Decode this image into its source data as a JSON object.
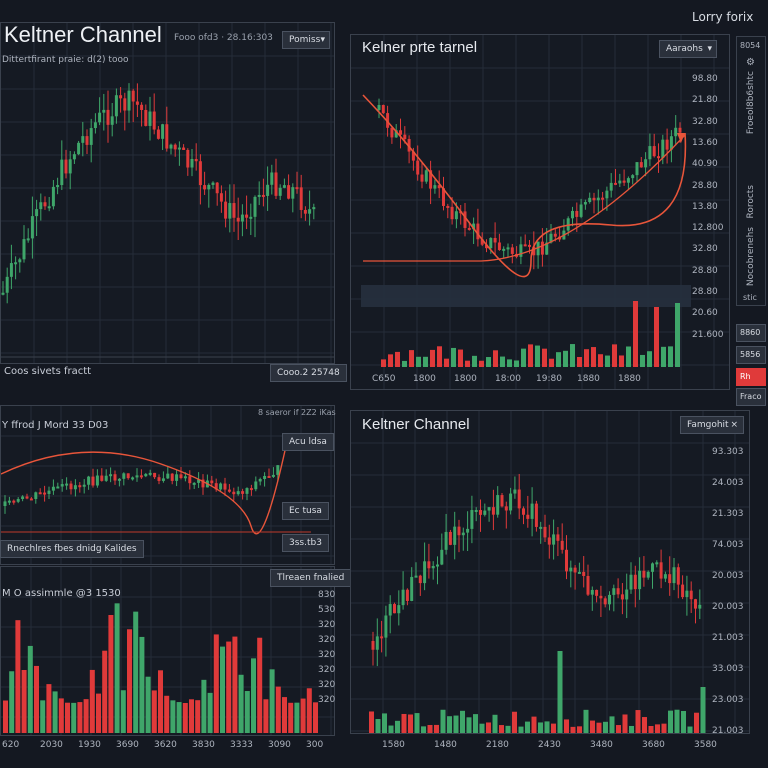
{
  "app_title": "Lorry forix",
  "colors": {
    "bg": "#141821",
    "up": "#3fa66a",
    "down": "#e03a3a",
    "grid": "#252c38",
    "curve": "#e8553a"
  },
  "panels": {
    "top_left": {
      "title": "Keltner Channel",
      "info": "Fooo ofd3 · 28.16:303",
      "dropdown": "Pomiss",
      "subtitle": "Dittertfirant praie: d(2) tooo",
      "footer_label": "Coos sivets fractt",
      "footer_button": "Cooo.2 25748"
    },
    "top_right": {
      "title": "Kelner prte tarnel",
      "dropdown": "Aaraohs",
      "price_labels": [
        "98.80",
        "21.80",
        "32.80",
        "13.60",
        "40.90",
        "28.80",
        "13.80",
        "12.800",
        "32.80",
        "28.80",
        "28.80",
        "20.60",
        "21.600"
      ],
      "x_labels": [
        "C650",
        "1800",
        "1800",
        "18:00",
        "19:80",
        "1880",
        "1880"
      ]
    },
    "middle_left": {
      "title": "Y ffrod J Mord 33 D03",
      "info": "8 saeror if 2Z2 iKas",
      "btn_upper": "Acu ldsa",
      "btn_mid": "Ec tusa",
      "btn_lower": "3ss.tb3",
      "legend": "Rnechlres fbes dnidg Kalides",
      "action": "Tlreaen fnalied"
    },
    "bottom_left": {
      "title": "M O assimmle @3 1530",
      "y_labels": [
        "830",
        "530",
        "320",
        "320",
        "320",
        "320",
        "320",
        "320"
      ],
      "x_labels": [
        "620",
        "2030",
        "1930",
        "3690",
        "3620",
        "3830",
        "3333",
        "3090",
        "300"
      ]
    },
    "bottom_right": {
      "title": "Keltner Channel",
      "dropdown": "Famgohit",
      "y_labels": [
        "93.303",
        "24.003",
        "21.303",
        "74.003",
        "20.003",
        "20.003",
        "21.003",
        "33.003",
        "23.003",
        "21.003"
      ],
      "x_labels": [
        "1580",
        "1480",
        "2180",
        "2430",
        "3480",
        "3680",
        "3580"
      ]
    }
  },
  "sidebar": {
    "header": "8054",
    "labels": [
      "Froeol8b6shtc",
      "Rorocts",
      "Nocobrenehs"
    ],
    "bottom": "stic",
    "buttons": [
      "8860",
      "5856",
      "Rh",
      "Fraco"
    ]
  }
}
